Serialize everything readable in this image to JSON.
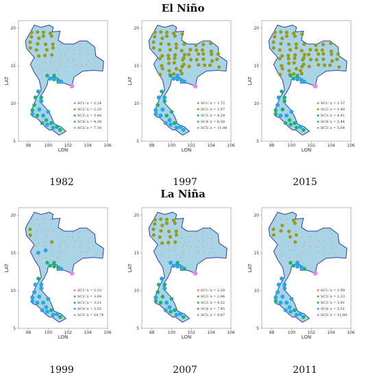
{
  "headings": {
    "el_nino": "El Niño",
    "la_nina": "La Niña"
  },
  "axis": {
    "xlabel": "LON",
    "ylabel": "LAT",
    "xticks": [
      "98",
      "100",
      "102",
      "104",
      "106"
    ],
    "yticks": [
      "5",
      "10",
      "15",
      "20"
    ],
    "xlim": [
      97,
      106
    ],
    "ylim": [
      5,
      21
    ]
  },
  "colors": {
    "SC1": "#f08080",
    "SC2": "#9a9a1a",
    "SC3": "#1fb07a",
    "SC4": "#2aa6e6",
    "SC5": "#e58ad8",
    "land": "#a9d4e6",
    "border": "#2f3f9e"
  },
  "chart_data": [
    {
      "type": "scatter",
      "year": "1982",
      "group": "El Niño",
      "legend": [
        {
          "id": "SC1",
          "label": "SC1: ̅x = 2.24"
        },
        {
          "id": "SC2",
          "label": "SC2: ̅x = 2.25"
        },
        {
          "id": "SC3",
          "label": "SC3: ̅x = 3.48"
        },
        {
          "id": "SC4",
          "label": "SC4: ̅x = 4.28"
        },
        {
          "id": "SC5",
          "label": "SC5: ̅x = 7.10"
        }
      ]
    },
    {
      "type": "scatter",
      "year": "1997",
      "group": "El Niño",
      "legend": [
        {
          "id": "SC1",
          "label": "SC1: ̅x = 1.72"
        },
        {
          "id": "SC2",
          "label": "SC2: ̅x = 1.97"
        },
        {
          "id": "SC3",
          "label": "SC3: ̅x = 4.29"
        },
        {
          "id": "SC4",
          "label": "SC4: ̅x = 6.58"
        },
        {
          "id": "SC5",
          "label": "SC5: ̅x = 11.06"
        }
      ]
    },
    {
      "type": "scatter",
      "year": "2015",
      "group": "El Niño",
      "legend": [
        {
          "id": "SC1",
          "label": "SC1: ̅x = 1.37"
        },
        {
          "id": "SC2",
          "label": "SC2: ̅x = 1.40"
        },
        {
          "id": "SC3",
          "label": "SC3: ̅x = 4.41"
        },
        {
          "id": "SC4",
          "label": "SC4: ̅x = 5.44"
        },
        {
          "id": "SC5",
          "label": "SC5: ̅x = 5.64"
        }
      ]
    },
    {
      "type": "scatter",
      "year": "1999",
      "group": "La Niña",
      "legend": [
        {
          "id": "SC1",
          "label": "SC1: ̅x = 2.33"
        },
        {
          "id": "SC2",
          "label": "SC2: ̅x = 3.04"
        },
        {
          "id": "SC3",
          "label": "SC3: ̅x = 3.21"
        },
        {
          "id": "SC4",
          "label": "SC4: ̅x = 5.55"
        },
        {
          "id": "SC5",
          "label": "SC5: ̅x = 14.74"
        }
      ]
    },
    {
      "type": "scatter",
      "year": "2007",
      "group": "La Niña",
      "legend": [
        {
          "id": "SC1",
          "label": "SC1: ̅x = 2.29"
        },
        {
          "id": "SC2",
          "label": "SC2: ̅x = 2.86"
        },
        {
          "id": "SC3",
          "label": "SC3: ̅x = 4.52"
        },
        {
          "id": "SC4",
          "label": "SC4: ̅x = 7.45"
        },
        {
          "id": "SC5",
          "label": "SC5: ̅x = 9.87"
        }
      ]
    },
    {
      "type": "scatter",
      "year": "2011",
      "group": "La Niña",
      "legend": [
        {
          "id": "SC1",
          "label": "SC1: ̅x = 1.99"
        },
        {
          "id": "SC2",
          "label": "SC2: ̅x = 2.33"
        },
        {
          "id": "SC3",
          "label": "SC3: ̅x = 3.81"
        },
        {
          "id": "SC4",
          "label": "SC4: ̅x = 5.51"
        },
        {
          "id": "SC5",
          "label": "SC5: ̅x = 11.69"
        }
      ]
    }
  ]
}
